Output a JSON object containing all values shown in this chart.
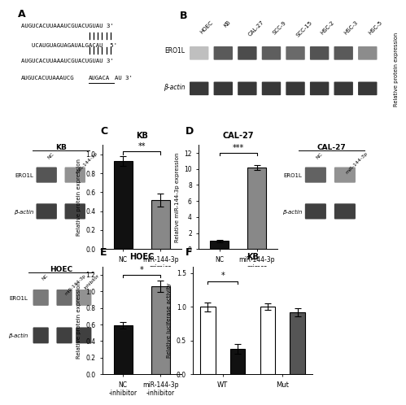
{
  "panel_B_cell_lines": [
    "HOEC",
    "KB",
    "CAL-27",
    "SCC-9",
    "SCC-15",
    "HSC-2",
    "HSC-3",
    "HSC-5"
  ],
  "panel_B_ero1l_intensities": [
    0.28,
    0.72,
    0.78,
    0.7,
    0.65,
    0.75,
    0.72,
    0.5
  ],
  "seq_lines": [
    "AUGUCACUUAAAUCGUACUGUAU 3'",
    "5' UCAUGUAGUAGAUALGACAU 5'",
    "AUGUCACUUAAAUCGUACUGUAU 3'",
    "AUGUCACUUAAAUCGAUGACAAU 3'"
  ],
  "panel_C_title": "KB",
  "panel_C_bars": [
    0.93,
    0.52
  ],
  "panel_C_bar_colors": [
    "#111111",
    "#888888"
  ],
  "panel_C_yerr": [
    0.05,
    0.07
  ],
  "panel_C_xticks": [
    "NC",
    "miR-144-3p\nmimics"
  ],
  "panel_C_ylabel": "Relative protein expression",
  "panel_C_sig": "**",
  "panel_C_ylim": [
    0.0,
    1.1
  ],
  "panel_C_yticks": [
    0.0,
    0.2,
    0.4,
    0.6,
    0.8,
    1.0
  ],
  "panel_D_title": "CAL-27",
  "panel_D_bars": [
    1.0,
    10.2
  ],
  "panel_D_bar_colors": [
    "#111111",
    "#888888"
  ],
  "panel_D_yerr": [
    0.15,
    0.3
  ],
  "panel_D_xticks": [
    "NC",
    "miR-144-3p\nmimcs"
  ],
  "panel_D_ylabel": "Relative miR-144-3p expression",
  "panel_D_sig": "***",
  "panel_D_ylim": [
    0,
    13
  ],
  "panel_D_yticks": [
    0,
    2,
    4,
    6,
    8,
    10,
    12
  ],
  "panel_E_title": "HOEC",
  "panel_E_bars": [
    0.59,
    1.06
  ],
  "panel_E_bar_colors": [
    "#111111",
    "#888888"
  ],
  "panel_E_yerr": [
    0.04,
    0.07
  ],
  "panel_E_xticks": [
    "NC\n-inhibitor",
    "miR-144-3p\n-inhibitor"
  ],
  "panel_E_ylabel": "Relative protein expression",
  "panel_E_sig": "*",
  "panel_E_ylim": [
    0.0,
    1.3
  ],
  "panel_E_yticks": [
    0.0,
    0.2,
    0.4,
    0.6,
    0.8,
    1.0,
    1.2
  ],
  "panel_F_title": "KB",
  "panel_F_bars_wt": [
    1.0,
    0.38
  ],
  "panel_F_bars_mut": [
    1.0,
    0.92
  ],
  "panel_F_bar_colors_wt": [
    "#ffffff",
    "#111111"
  ],
  "panel_F_bar_colors_mut": [
    "#ffffff",
    "#555555"
  ],
  "panel_F_yerr_wt": [
    0.07,
    0.07
  ],
  "panel_F_yerr_mut": [
    0.05,
    0.06
  ],
  "panel_F_ylabel": "Relative luciferase activity",
  "panel_F_sig": "*",
  "panel_F_ylim": [
    0.0,
    1.6
  ],
  "panel_F_yticks": [
    0.0,
    0.5,
    1.0,
    1.5
  ],
  "bg_color": "#ffffff"
}
